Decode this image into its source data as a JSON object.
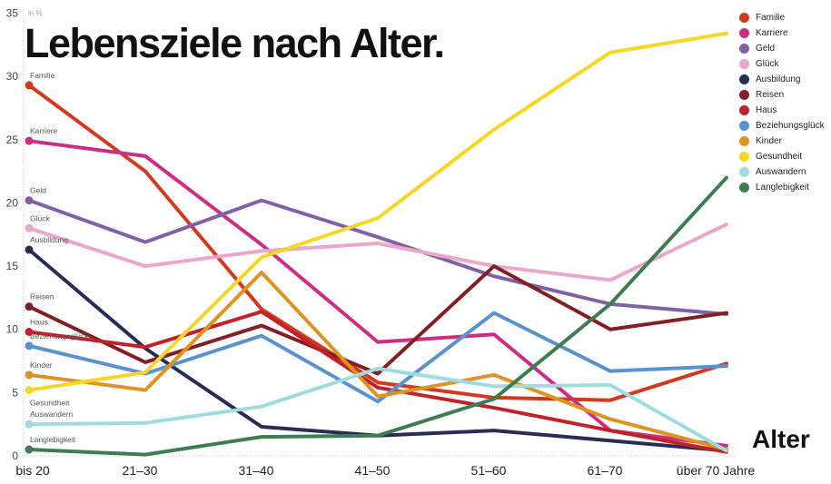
{
  "title": "Lebensziele nach Alter.",
  "y_axis": {
    "unit_label": "in %",
    "ticks": [
      0,
      5,
      10,
      15,
      20,
      25,
      30,
      35
    ]
  },
  "x_axis": {
    "label": "Alter"
  },
  "chart_data": {
    "type": "line",
    "categories": [
      "bis 20",
      "21–30",
      "31–40",
      "41–50",
      "51–60",
      "61–70",
      "über 70 Jahre"
    ],
    "ylim": [
      0,
      35
    ],
    "grid": "baseline-and-left-axis-dotted",
    "legend_position": "top-right",
    "series": [
      {
        "name": "Familie",
        "color": "#d23a20",
        "values": [
          29.3,
          22.5,
          11.6,
          5.8,
          4.6,
          4.4,
          7.3
        ]
      },
      {
        "name": "Karriere",
        "color": "#cb2e82",
        "values": [
          24.9,
          23.7,
          16.7,
          9.0,
          9.6,
          2.0,
          0.8
        ]
      },
      {
        "name": "Geld",
        "color": "#8061a8",
        "values": [
          20.2,
          16.9,
          20.2,
          17.3,
          14.2,
          12.0,
          11.2
        ]
      },
      {
        "name": "Glück",
        "color": "#ecA6c9",
        "values": [
          18.0,
          15.0,
          16.2,
          16.8,
          15.0,
          13.9,
          18.3
        ]
      },
      {
        "name": "Ausbildung",
        "color": "#292c55",
        "values": [
          16.3,
          8.5,
          2.3,
          1.6,
          2.0,
          1.2,
          0.4
        ]
      },
      {
        "name": "Reisen",
        "color": "#811f24",
        "values": [
          11.8,
          7.4,
          10.3,
          6.5,
          15.0,
          10.0,
          11.3
        ]
      },
      {
        "name": "Haus",
        "color": "#c22127",
        "values": [
          9.8,
          8.6,
          11.4,
          5.4,
          3.8,
          2.0,
          0.3
        ]
      },
      {
        "name": "Beziehungsglück",
        "color": "#5a92d0",
        "values": [
          8.7,
          6.5,
          9.5,
          4.3,
          11.3,
          6.7,
          7.1
        ]
      },
      {
        "name": "Kinder",
        "color": "#de9421",
        "values": [
          6.4,
          5.2,
          14.5,
          4.7,
          6.4,
          2.9,
          0.5
        ]
      },
      {
        "name": "Gesundheit",
        "color": "#f6d725",
        "values": [
          5.2,
          6.6,
          15.7,
          18.8,
          25.8,
          31.9,
          33.4
        ]
      },
      {
        "name": "Auswandern",
        "color": "#9edce1",
        "values": [
          2.5,
          2.6,
          3.9,
          6.9,
          5.5,
          5.6,
          0.4
        ]
      },
      {
        "name": "Langlebigkeit",
        "color": "#3e7d52",
        "values": [
          0.5,
          0.1,
          1.5,
          1.6,
          4.5,
          12.0,
          22.0
        ]
      }
    ]
  }
}
